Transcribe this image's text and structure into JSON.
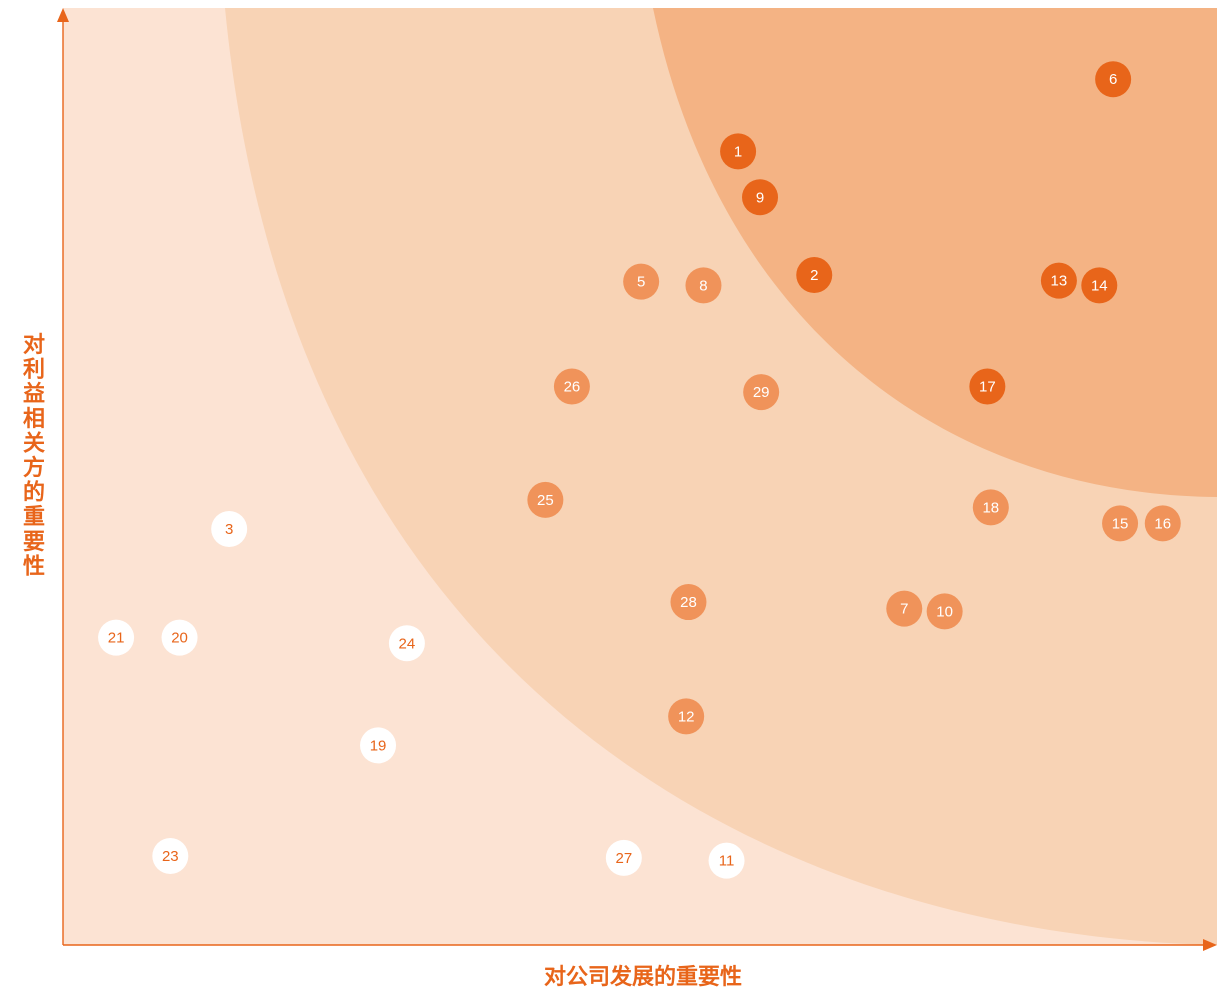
{
  "chart_data": {
    "type": "scatter",
    "xlabel": "对公司发展的重要性",
    "ylabel": "对利益相关方的重要性",
    "xlim": [
      0,
      100
    ],
    "ylim": [
      0,
      100
    ],
    "grid": false,
    "colors": {
      "high": "#E8651A",
      "medium": "#F0935A",
      "low": "#FFFFFF",
      "low_text": "#E8651A",
      "zone_outer": "#FCE3D3",
      "zone_middle": "#F8D3B5",
      "zone_inner": "#F4B384",
      "axis": "#E8651A"
    },
    "points": [
      {
        "label": "1",
        "x": 58.5,
        "y": 84.7,
        "level": "high"
      },
      {
        "label": "2",
        "x": 65.1,
        "y": 71.5,
        "level": "high"
      },
      {
        "label": "3",
        "x": 14.4,
        "y": 44.4,
        "level": "low"
      },
      {
        "label": "5",
        "x": 50.1,
        "y": 70.8,
        "level": "medium"
      },
      {
        "label": "6",
        "x": 91.0,
        "y": 92.4,
        "level": "high"
      },
      {
        "label": "7",
        "x": 72.9,
        "y": 35.9,
        "level": "medium"
      },
      {
        "label": "8",
        "x": 55.5,
        "y": 70.4,
        "level": "medium"
      },
      {
        "label": "9",
        "x": 60.4,
        "y": 79.8,
        "level": "high"
      },
      {
        "label": "10",
        "x": 76.4,
        "y": 35.6,
        "level": "medium"
      },
      {
        "label": "11",
        "x": 57.5,
        "y": 9.0,
        "level": "low"
      },
      {
        "label": "12",
        "x": 54.0,
        "y": 24.4,
        "level": "medium"
      },
      {
        "label": "13",
        "x": 86.3,
        "y": 70.9,
        "level": "high"
      },
      {
        "label": "14",
        "x": 89.8,
        "y": 70.4,
        "level": "high"
      },
      {
        "label": "15",
        "x": 91.6,
        "y": 45.0,
        "level": "medium"
      },
      {
        "label": "16",
        "x": 95.3,
        "y": 45.0,
        "level": "medium"
      },
      {
        "label": "17",
        "x": 80.1,
        "y": 59.6,
        "level": "high"
      },
      {
        "label": "18",
        "x": 80.4,
        "y": 46.7,
        "level": "medium"
      },
      {
        "label": "19",
        "x": 27.3,
        "y": 21.3,
        "level": "low"
      },
      {
        "label": "20",
        "x": 10.1,
        "y": 32.8,
        "level": "low"
      },
      {
        "label": "21",
        "x": 4.6,
        "y": 32.8,
        "level": "low"
      },
      {
        "label": "23",
        "x": 9.3,
        "y": 9.5,
        "level": "low"
      },
      {
        "label": "24",
        "x": 29.8,
        "y": 32.2,
        "level": "low"
      },
      {
        "label": "25",
        "x": 41.8,
        "y": 47.5,
        "level": "medium"
      },
      {
        "label": "26",
        "x": 44.1,
        "y": 59.6,
        "level": "medium"
      },
      {
        "label": "27",
        "x": 48.6,
        "y": 9.3,
        "level": "low"
      },
      {
        "label": "28",
        "x": 54.2,
        "y": 36.6,
        "level": "medium"
      },
      {
        "label": "29",
        "x": 60.5,
        "y": 59.0,
        "level": "medium"
      }
    ]
  }
}
